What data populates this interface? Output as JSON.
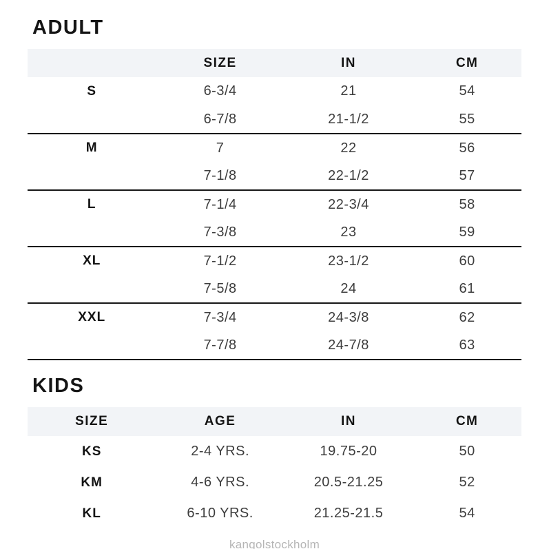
{
  "chart_data": [
    {
      "type": "table",
      "title": "ADULT",
      "columns": [
        "",
        "SIZE",
        "IN",
        "CM"
      ],
      "rows": [
        [
          "S",
          "6-3/4",
          "21",
          "54"
        ],
        [
          "",
          "6-7/8",
          "21-1/2",
          "55"
        ],
        [
          "M",
          "7",
          "22",
          "56"
        ],
        [
          "",
          "7-1/8",
          "22-1/2",
          "57"
        ],
        [
          "L",
          "7-1/4",
          "22-3/4",
          "58"
        ],
        [
          "",
          "7-3/8",
          "23",
          "59"
        ],
        [
          "XL",
          "7-1/2",
          "23-1/2",
          "60"
        ],
        [
          "",
          "7-5/8",
          "24",
          "61"
        ],
        [
          "XXL",
          "7-3/4",
          "24-3/8",
          "62"
        ],
        [
          "",
          "7-7/8",
          "24-7/8",
          "63"
        ]
      ],
      "layout": {
        "header_bg": "#f2f4f7",
        "separator_color": "#161616",
        "group_separators_after_rows": [
          1,
          3,
          5,
          7,
          9
        ]
      }
    },
    {
      "type": "table",
      "title": "KIDS",
      "columns": [
        "SIZE",
        "AGE",
        "IN",
        "CM"
      ],
      "rows": [
        [
          "KS",
          "2-4 YRS.",
          "19.75-20",
          "50"
        ],
        [
          "KM",
          "4-6 YRS.",
          "20.5-21.25",
          "52"
        ],
        [
          "KL",
          "6-10 YRS.",
          "21.25-21.5",
          "54"
        ]
      ],
      "layout": {
        "header_bg": "#f2f4f7",
        "grid": "none"
      }
    }
  ],
  "footer": {
    "text": "kangolstockholm"
  },
  "colors": {
    "header_band": "#f2f4f7",
    "separator": "#161616",
    "body_text": "#3d3d3d",
    "bold_text": "#141414",
    "footer_text": "#b5b5b5"
  }
}
